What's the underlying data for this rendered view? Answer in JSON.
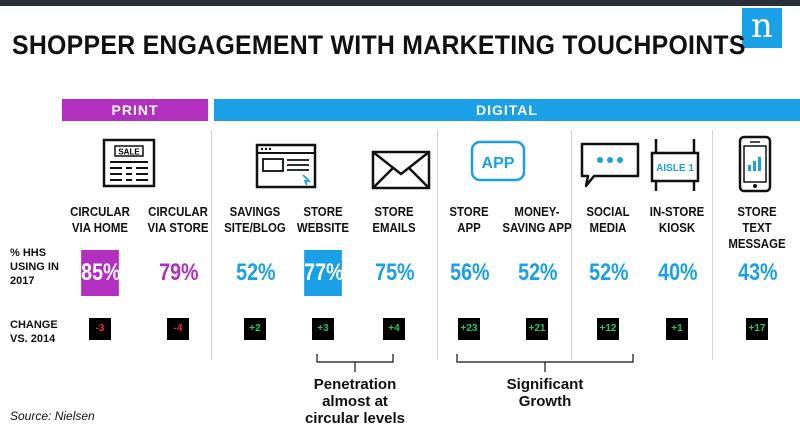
{
  "title": "SHOPPER ENGAGEMENT WITH MARKETING TOUCHPOINTS",
  "logo": "n",
  "groups": {
    "print": "PRINT",
    "digital": "DIGITAL"
  },
  "row_labels": {
    "pct": "% HHS\nUSING IN\n2017",
    "change": "CHANGE\nVS. 2014"
  },
  "icons": {
    "sale_text": "SALE",
    "app_text": "APP",
    "aisle_text": "AISLE 1"
  },
  "colors": {
    "print": "#b22fbf",
    "digital": "#1aa0e6",
    "positive": "#22c55e",
    "negative": "#ef2b2b"
  },
  "chart_data": {
    "type": "table",
    "title": "SHOPPER ENGAGEMENT WITH MARKETING TOUCHPOINTS",
    "categories": [
      "CIRCULAR VIA HOME",
      "CIRCULAR VIA STORE",
      "SAVINGS SITE/BLOG",
      "STORE WEBSITE",
      "STORE EMAILS",
      "STORE APP",
      "MONEY-SAVING APP",
      "SOCIAL MEDIA",
      "IN-STORE KIOSK",
      "STORE TEXT MESSAGE"
    ],
    "category_labels": [
      "CIRCULAR\nVIA HOME",
      "CIRCULAR\nVIA STORE",
      "SAVINGS\nSITE/BLOG",
      "STORE\nWEBSITE",
      "STORE\nEMAILS",
      "STORE\nAPP",
      "MONEY-\nSAVING APP",
      "SOCIAL\nMEDIA",
      "IN-STORE\nKIOSK",
      "STORE\nTEXT MESSAGE"
    ],
    "groups": [
      "PRINT",
      "PRINT",
      "DIGITAL",
      "DIGITAL",
      "DIGITAL",
      "DIGITAL",
      "DIGITAL",
      "DIGITAL",
      "DIGITAL",
      "DIGITAL"
    ],
    "pct_values": [
      85,
      79,
      52,
      77,
      75,
      56,
      52,
      52,
      40,
      43
    ],
    "pct_labels": [
      "85%",
      "79%",
      "52%",
      "77%",
      "75%",
      "56%",
      "52%",
      "52%",
      "40%",
      "43%"
    ],
    "highlighted": [
      true,
      false,
      false,
      true,
      false,
      false,
      false,
      false,
      false,
      false
    ],
    "change_values": [
      -3,
      -4,
      2,
      3,
      4,
      23,
      21,
      12,
      1,
      17
    ],
    "change_labels": [
      "-3",
      "-4",
      "+2",
      "+3",
      "+4",
      "+23",
      "+21",
      "+12",
      "+1",
      "+17"
    ]
  },
  "callouts": [
    {
      "text": "Penetration\nalmost at\ncircular levels"
    },
    {
      "text": "Significant\nGrowth"
    }
  ],
  "source": "Source: Nielsen"
}
